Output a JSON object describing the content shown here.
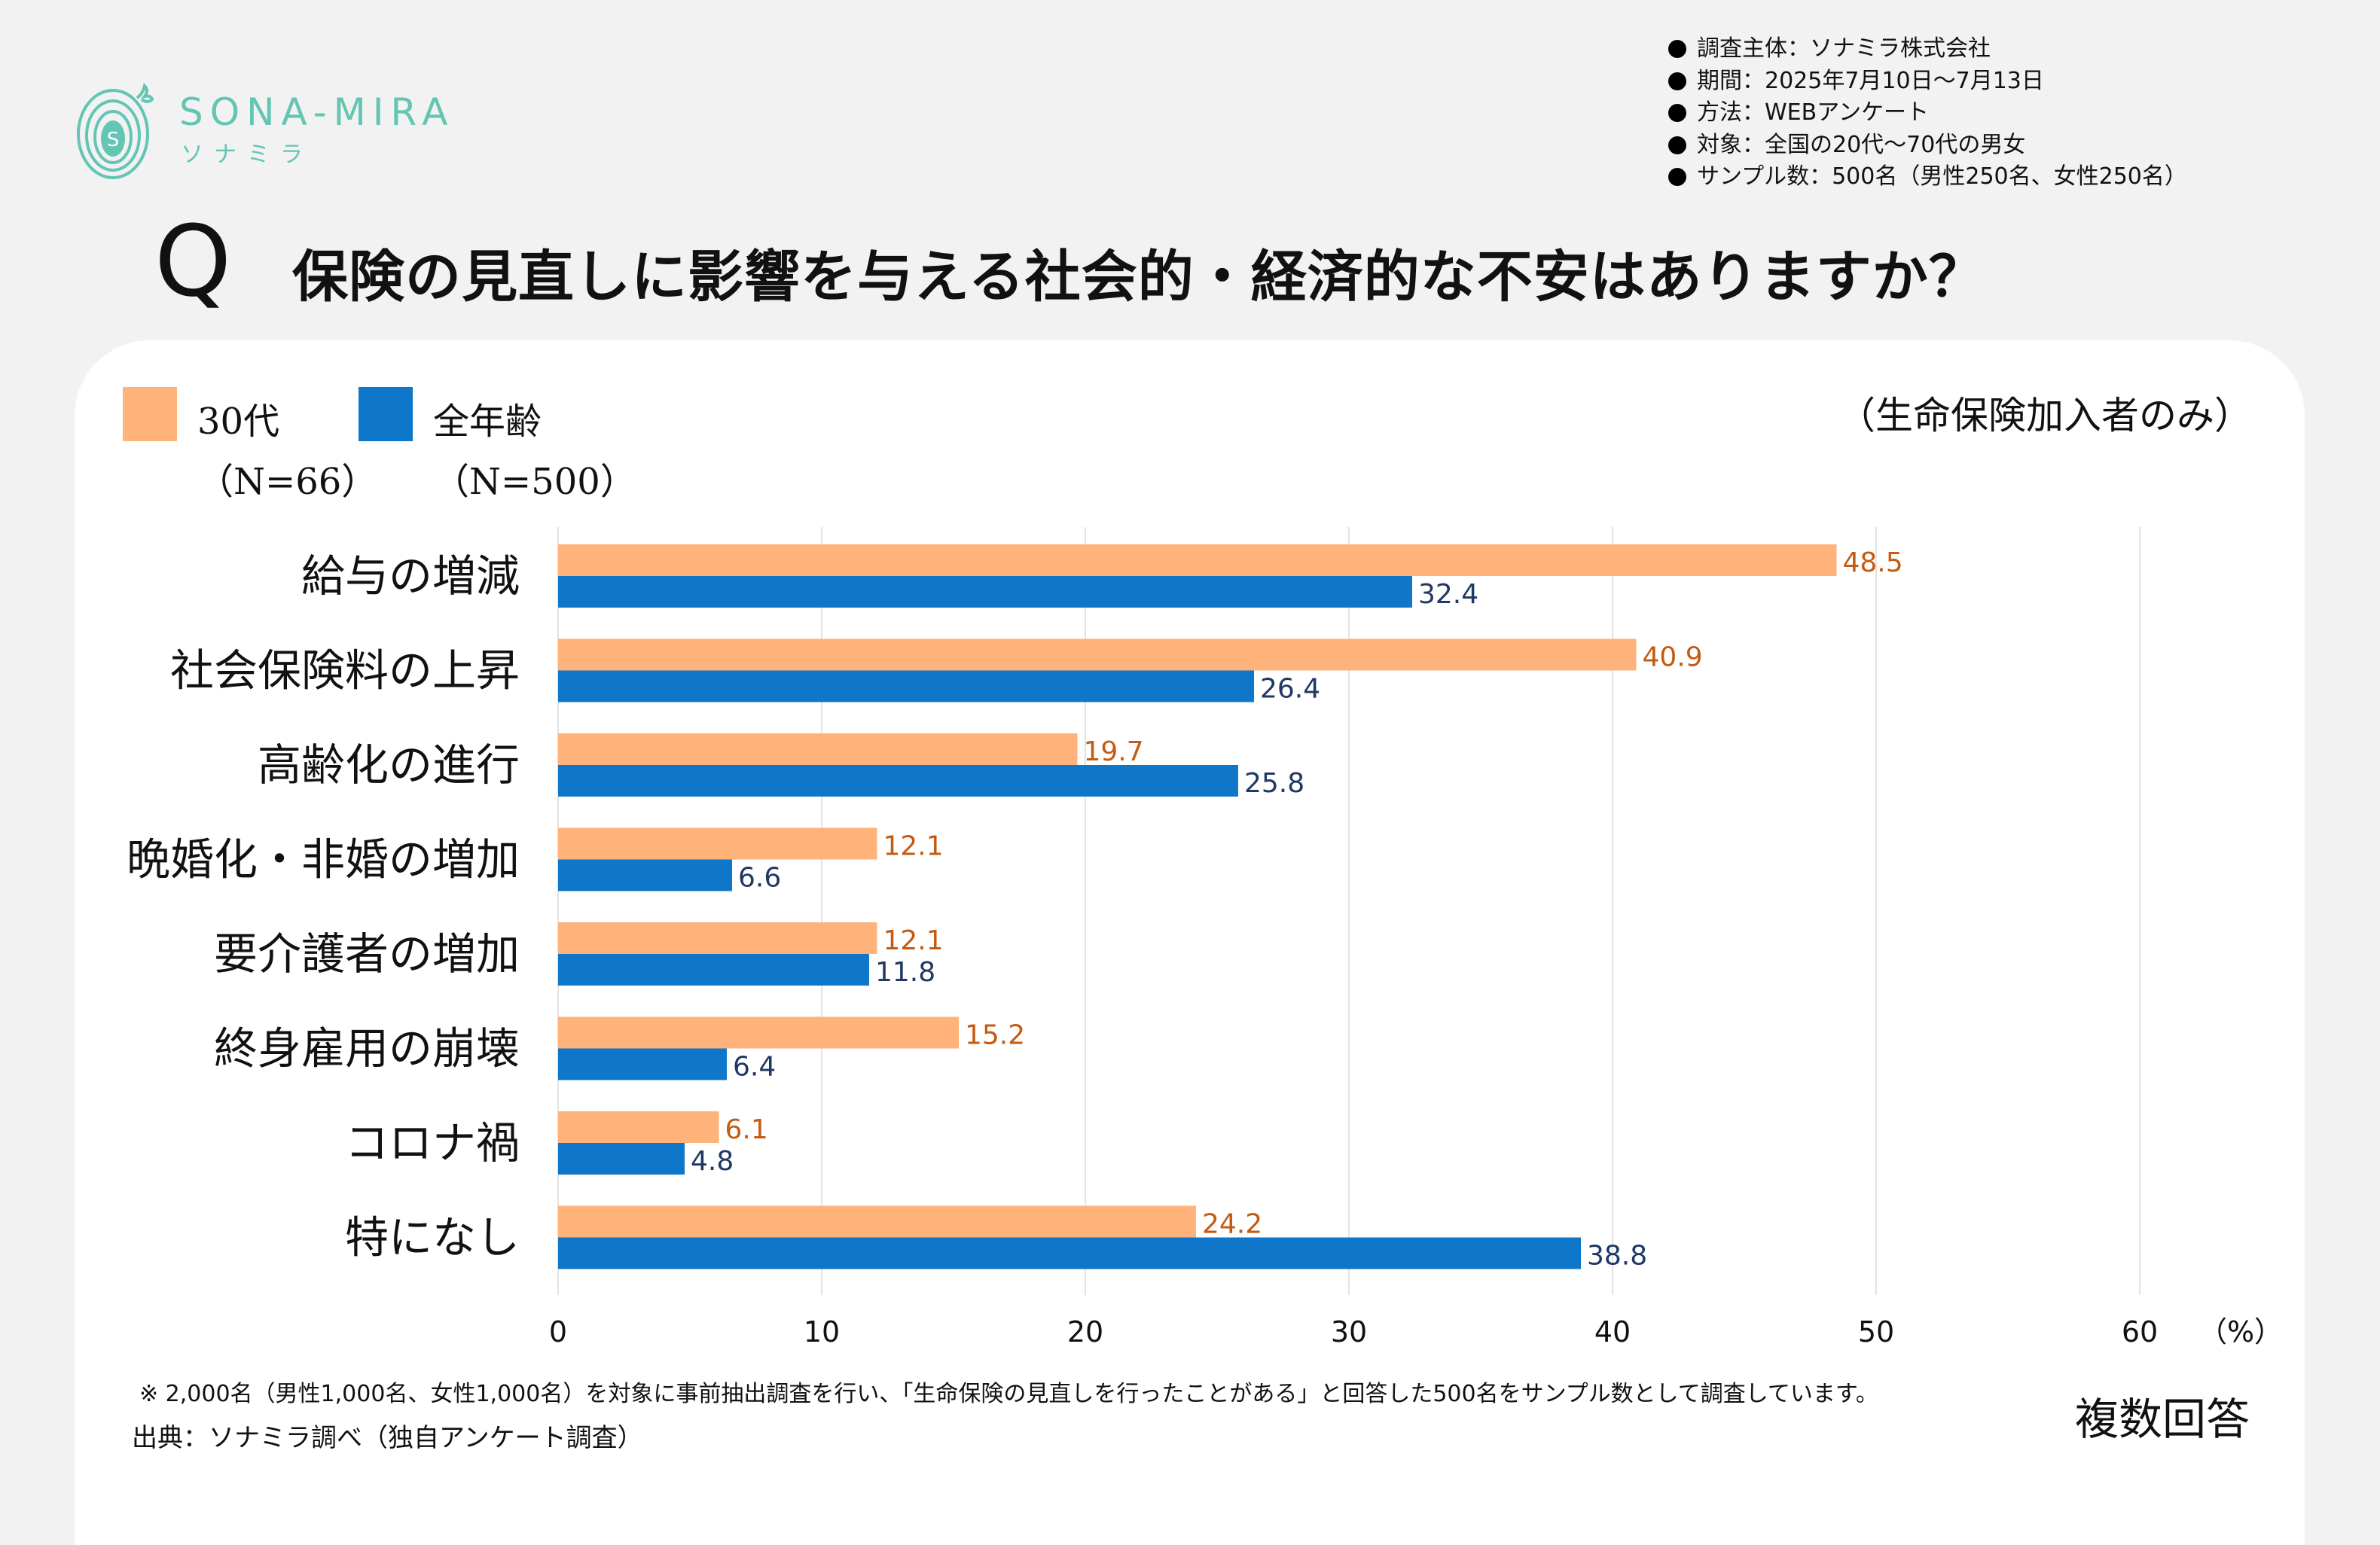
{
  "brand": {
    "name": "SONA-MIRA",
    "kana": "ソナミラ",
    "logo_icon": "spiral-s-logo-icon",
    "color": "#63c5b3"
  },
  "survey_info": [
    "調査主体：ソナミラ株式会社",
    "期間：2025年7月10日～7月13日",
    "方法：WEBアンケート",
    "対象：全国の20代～70代の男女",
    "サンプル数：500名（男性250名、女性250名）"
  ],
  "question": {
    "mark": "Q",
    "text": "保険の見直しに影響を与える社会的・経済的な不安はありますか？"
  },
  "subtitle": "（生命保険加入者のみ）",
  "legend": [
    {
      "label": "30代",
      "n": "（N=66）",
      "color": "#ffb27a"
    },
    {
      "label": "全年齢",
      "n": "（N=500）",
      "color": "#0e77c9"
    }
  ],
  "chart_data": {
    "type": "bar",
    "orientation": "horizontal",
    "title": "保険の見直しに影響を与える社会的・経済的な不安はありますか？",
    "categories": [
      "給与の増減",
      "社会保険料の上昇",
      "高齢化の進行",
      "晩婚化・非婚の増加",
      "要介護者の増加",
      "終身雇用の崩壊",
      "コロナ禍",
      "特になし"
    ],
    "series": [
      {
        "name": "30代",
        "n": "N=66",
        "color": "#ffb27a",
        "label_color": "#c55a11",
        "values": [
          48.5,
          40.9,
          19.7,
          12.1,
          12.1,
          15.2,
          6.1,
          24.2
        ]
      },
      {
        "name": "全年齢",
        "n": "N=500",
        "color": "#0e77c9",
        "label_color": "#1f3864",
        "values": [
          32.4,
          26.4,
          25.8,
          6.6,
          11.8,
          6.4,
          4.8,
          38.8
        ]
      }
    ],
    "xlabel": "",
    "unit_label": "（%）",
    "xlim": [
      0,
      60
    ],
    "xticks": [
      0,
      10,
      20,
      30,
      40,
      50,
      60
    ],
    "grid": true,
    "legend_position": "top-left"
  },
  "footnote": "※ 2,000名（男性1,000名、女性1,000名）を対象に事前抽出調査を行い、「生命保険の見直しを行ったことがある」と回答した500名をサンプル数として調査しています。",
  "source": "出典：ソナミラ調べ（独自アンケート調査）",
  "answer_type": "複数回答"
}
